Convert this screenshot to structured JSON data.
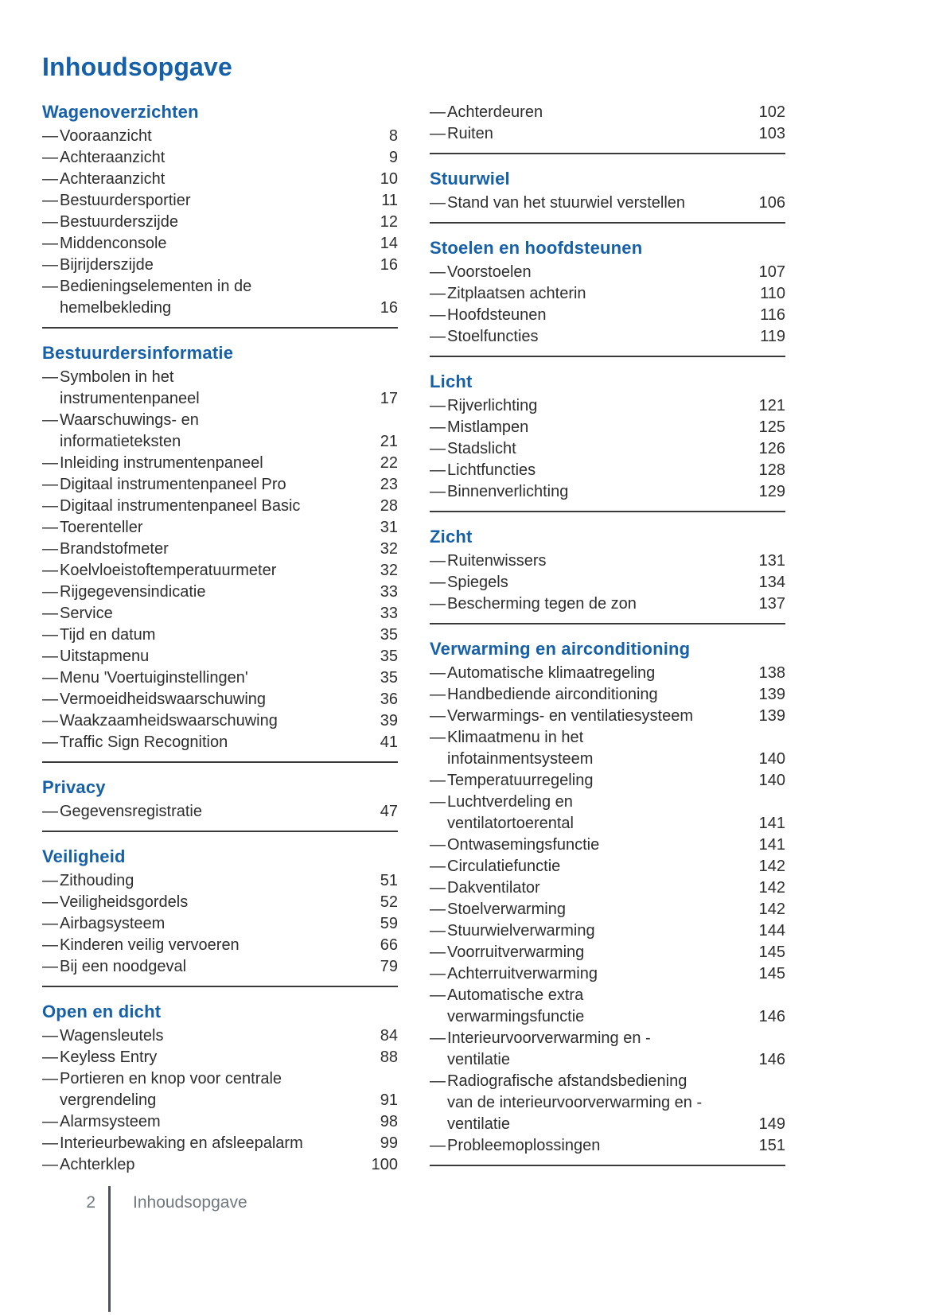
{
  "title": "Inhoudsopgave",
  "item_prefix": "—",
  "colors": {
    "accent_blue": "#1560A8",
    "body_text": "#2e2e2e",
    "footer_gray": "#71787e",
    "rule_dark": "#3a3a3a"
  },
  "footer": {
    "page_number": "2",
    "section_label": "Inhoudsopgave"
  },
  "columns": [
    {
      "sections": [
        {
          "heading": "Wagenoverzichten",
          "rule": true,
          "items": [
            {
              "label": "Vooraanzicht",
              "page": "8"
            },
            {
              "label": "Achteraanzicht",
              "page": "9"
            },
            {
              "label": "Achteraanzicht",
              "page": "10"
            },
            {
              "label": "Bestuurdersportier",
              "page": "11"
            },
            {
              "label": "Bestuurderszijde",
              "page": "12"
            },
            {
              "label": "Middenconsole",
              "page": "14"
            },
            {
              "label": "Bijrijderszijde",
              "page": "16"
            },
            {
              "label": "Bedieningselementen in de\nhemelbekleding",
              "page": "16"
            }
          ]
        },
        {
          "heading": "Bestuurdersinformatie",
          "rule": true,
          "items": [
            {
              "label": "Symbolen in het\ninstrumentenpaneel",
              "page": "17"
            },
            {
              "label": "Waarschuwings- en\ninformatieteksten",
              "page": "21"
            },
            {
              "label": "Inleiding instrumentenpaneel",
              "page": "22"
            },
            {
              "label": "Digitaal instrumentenpaneel Pro",
              "page": "23"
            },
            {
              "label": "Digitaal instrumentenpaneel Basic",
              "page": "28"
            },
            {
              "label": "Toerenteller",
              "page": "31"
            },
            {
              "label": "Brandstofmeter",
              "page": "32"
            },
            {
              "label": "Koelvloeistoftemperatuurmeter",
              "page": "32"
            },
            {
              "label": "Rijgegevensindicatie",
              "page": "33"
            },
            {
              "label": "Service",
              "page": "33"
            },
            {
              "label": "Tijd en datum",
              "page": "35"
            },
            {
              "label": "Uitstapmenu",
              "page": "35"
            },
            {
              "label": "Menu 'Voertuiginstellingen'",
              "page": "35"
            },
            {
              "label": "Vermoeidheidswaarschuwing",
              "page": "36"
            },
            {
              "label": "Waakzaamheidswaarschuwing",
              "page": "39"
            },
            {
              "label": "Traffic Sign Recognition",
              "page": "41"
            }
          ]
        },
        {
          "heading": "Privacy",
          "rule": true,
          "items": [
            {
              "label": "Gegevensregistratie",
              "page": "47"
            }
          ]
        },
        {
          "heading": "Veiligheid",
          "rule": true,
          "items": [
            {
              "label": "Zithouding",
              "page": "51"
            },
            {
              "label": "Veiligheidsgordels",
              "page": "52"
            },
            {
              "label": "Airbagsysteem",
              "page": "59"
            },
            {
              "label": "Kinderen veilig vervoeren",
              "page": "66"
            },
            {
              "label": "Bij een noodgeval",
              "page": "79"
            }
          ]
        },
        {
          "heading": "Open en dicht",
          "rule": false,
          "items": [
            {
              "label": "Wagensleutels",
              "page": "84"
            },
            {
              "label": "Keyless Entry",
              "page": "88"
            },
            {
              "label": "Portieren en knop voor centrale\nvergrendeling",
              "page": "91"
            },
            {
              "label": "Alarmsysteem",
              "page": "98"
            },
            {
              "label": "Interieurbewaking en afsleepalarm",
              "page": "99"
            },
            {
              "label": "Achterklep",
              "page": "100"
            }
          ]
        }
      ]
    },
    {
      "sections": [
        {
          "heading": null,
          "rule": true,
          "items": [
            {
              "label": "Achterdeuren",
              "page": "102"
            },
            {
              "label": "Ruiten",
              "page": "103"
            }
          ]
        },
        {
          "heading": "Stuurwiel",
          "rule": true,
          "items": [
            {
              "label": "Stand van het stuurwiel verstellen",
              "page": "106"
            }
          ]
        },
        {
          "heading": "Stoelen en hoofdsteunen",
          "rule": true,
          "items": [
            {
              "label": "Voorstoelen",
              "page": "107"
            },
            {
              "label": "Zitplaatsen achterin",
              "page": "110"
            },
            {
              "label": "Hoofdsteunen",
              "page": "116"
            },
            {
              "label": "Stoelfuncties",
              "page": "119"
            }
          ]
        },
        {
          "heading": "Licht",
          "rule": true,
          "items": [
            {
              "label": "Rijverlichting",
              "page": "121"
            },
            {
              "label": "Mistlampen",
              "page": "125"
            },
            {
              "label": "Stadslicht",
              "page": "126"
            },
            {
              "label": "Lichtfuncties",
              "page": "128"
            },
            {
              "label": "Binnenverlichting",
              "page": "129"
            }
          ]
        },
        {
          "heading": "Zicht",
          "rule": true,
          "items": [
            {
              "label": "Ruitenwissers",
              "page": "131"
            },
            {
              "label": "Spiegels",
              "page": "134"
            },
            {
              "label": "Bescherming tegen de zon",
              "page": "137"
            }
          ]
        },
        {
          "heading": "Verwarming en airconditioning",
          "rule": true,
          "items": [
            {
              "label": "Automatische klimaatregeling",
              "page": "138"
            },
            {
              "label": "Handbediende airconditioning",
              "page": "139"
            },
            {
              "label": "Verwarmings- en ventilatiesysteem",
              "page": "139"
            },
            {
              "label": "Klimaatmenu in het\ninfotainmentsysteem",
              "page": "140"
            },
            {
              "label": "Temperatuurregeling",
              "page": "140"
            },
            {
              "label": "Luchtverdeling en\nventilatortoerental",
              "page": "141"
            },
            {
              "label": "Ontwasemingsfunctie",
              "page": "141"
            },
            {
              "label": "Circulatiefunctie",
              "page": "142"
            },
            {
              "label": "Dakventilator",
              "page": "142"
            },
            {
              "label": "Stoelverwarming",
              "page": "142"
            },
            {
              "label": "Stuurwielverwarming",
              "page": "144"
            },
            {
              "label": "Voorruitverwarming",
              "page": "145"
            },
            {
              "label": "Achterruitverwarming",
              "page": "145"
            },
            {
              "label": "Automatische extra\nverwarmingsfunctie",
              "page": "146"
            },
            {
              "label": "Interieurvoorverwarming en -\nventilatie",
              "page": "146"
            },
            {
              "label": "Radiografische afstandsbediening\nvan de interieurvoorverwarming en -\nventilatie",
              "page": "149"
            },
            {
              "label": "Probleemoplossingen",
              "page": "151"
            }
          ]
        }
      ]
    }
  ]
}
